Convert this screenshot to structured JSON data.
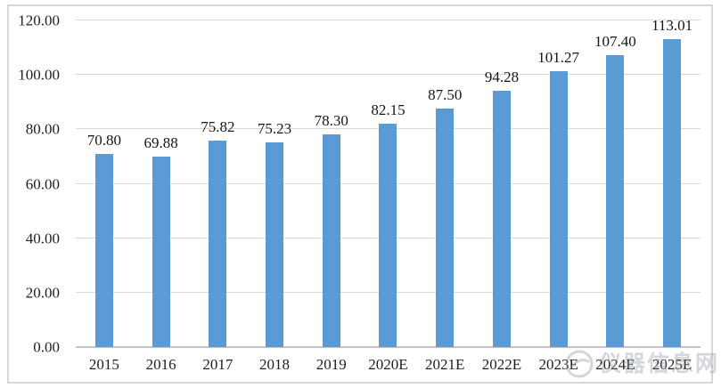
{
  "chart_data": {
    "type": "bar",
    "categories": [
      "2015",
      "2016",
      "2017",
      "2018",
      "2019",
      "2020E",
      "2021E",
      "2022E",
      "2023E",
      "2024E",
      "2025E"
    ],
    "values": [
      70.8,
      69.88,
      75.82,
      75.23,
      78.3,
      82.15,
      87.5,
      94.28,
      101.27,
      107.4,
      113.01
    ],
    "value_labels": [
      "70.80",
      "69.88",
      "75.82",
      "75.23",
      "78.30",
      "82.15",
      "87.50",
      "94.28",
      "101.27",
      "107.40",
      "113.01"
    ],
    "title": "",
    "xlabel": "",
    "ylabel": "",
    "ylim": [
      0,
      120
    ],
    "yticks": [
      "0.00",
      "20.00",
      "40.00",
      "60.00",
      "80.00",
      "100.00",
      "120.00"
    ],
    "grid": true,
    "legend": false,
    "colors": {
      "bar": "#5B9BD5",
      "gridline": "#D9D9D9",
      "axis_line": "#C4C4C4",
      "tick_text": "#1F1F1F",
      "value_label_text": "#161616",
      "frame_border": "#D8D8D8",
      "background": "#FFFFFF",
      "watermark": "#8E99A6"
    }
  },
  "watermark": {
    "text": "仪器信息网"
  }
}
